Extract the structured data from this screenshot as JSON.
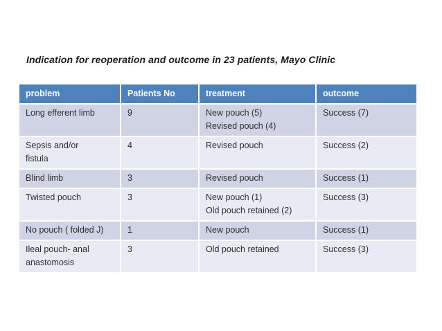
{
  "slide": {
    "title": "Indication for reoperation and outcome in 23 patients, Mayo Clinic"
  },
  "table": {
    "columns": [
      "problem",
      "Patients No",
      "treatment",
      "outcome"
    ],
    "rows": [
      {
        "problem": "Long efferent limb",
        "patients_no": "9",
        "treatment": "New pouch (5)\nRevised pouch (4)",
        "outcome": "Success (7)"
      },
      {
        "problem": "Sepsis and/or\nfistula",
        "patients_no": "4",
        "treatment": "Revised pouch",
        "outcome": "Success (2)"
      },
      {
        "problem": "Blind limb",
        "patients_no": "3",
        "treatment": "Revised pouch",
        "outcome": "Success (1)"
      },
      {
        "problem": "Twisted pouch",
        "patients_no": "3",
        "treatment": "New pouch (1)\nOld pouch retained (2)",
        "outcome": "Success (3)"
      },
      {
        "problem": "No pouch ( folded J)",
        "patients_no": "1",
        "treatment": "New pouch",
        "outcome": "Success (1)"
      },
      {
        "problem": "Ileal pouch- anal\nanastomosis",
        "patients_no": "3",
        "treatment": "Old pouch retained",
        "outcome": "Success (3)"
      }
    ],
    "colors": {
      "header_bg": "#4F81BD",
      "header_text": "#FFFFFF",
      "row_band_dark": "#CED4E3",
      "row_band_light": "#E9EBF4",
      "body_text": "#2E2E2E",
      "cell_border": "#FFFFFF"
    }
  }
}
